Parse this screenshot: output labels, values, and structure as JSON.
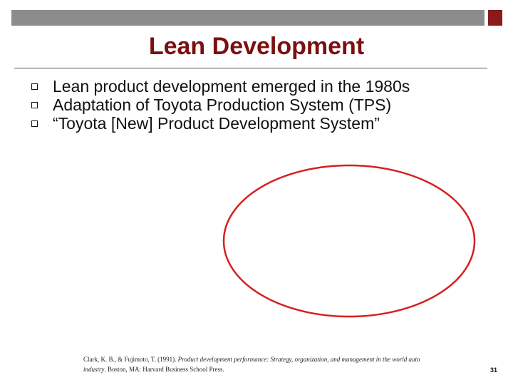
{
  "slide": {
    "title": "Lean Development",
    "bullets": [
      "Lean product development emerged in the 1980s",
      "Adaptation of Toyota Production System (TPS)",
      "“Toyota [New] Product Development System”"
    ],
    "citation": {
      "authors": "Clark, K. B., & Fujimoto, T. (1991). ",
      "book_title": "Product development performance: Strategy, organization, and management in the world auto industry",
      "publisher": ". Boston, MA: Harvard Business School Press."
    },
    "page_number": "31"
  },
  "colors": {
    "title": "#7b1010",
    "accent_square": "#8b1a1a",
    "top_bar": "#8c8c8c",
    "ellipse_stroke": "#d42020"
  }
}
